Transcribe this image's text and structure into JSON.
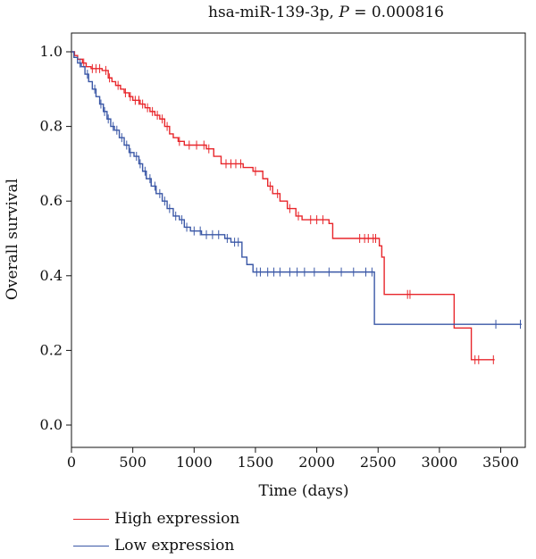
{
  "title": {
    "text": "hsa-miR-139-3p, ",
    "p_symbol": "P",
    "p_value": " = 0.000816"
  },
  "chart_data": {
    "type": "line",
    "step": true,
    "xlabel": "Time (days)",
    "ylabel": "Overall survival",
    "xlim": [
      0,
      3700
    ],
    "ylim": [
      0.0,
      1.0
    ],
    "x_ticks": [
      "0",
      "500",
      "1000",
      "1500",
      "2000",
      "2500",
      "3000",
      "3500"
    ],
    "y_ticks": [
      "0.0",
      "0.2",
      "0.4",
      "0.6",
      "0.8",
      "1.0"
    ],
    "legend_position": "bottom-left",
    "series": [
      {
        "name": "High expression",
        "color": "#e8262b",
        "points": [
          [
            0,
            1.0
          ],
          [
            25,
            0.99
          ],
          [
            50,
            0.98
          ],
          [
            90,
            0.97
          ],
          [
            120,
            0.96
          ],
          [
            160,
            0.955
          ],
          [
            250,
            0.95
          ],
          [
            300,
            0.93
          ],
          [
            330,
            0.92
          ],
          [
            360,
            0.91
          ],
          [
            400,
            0.9
          ],
          [
            430,
            0.89
          ],
          [
            470,
            0.88
          ],
          [
            500,
            0.87
          ],
          [
            560,
            0.86
          ],
          [
            600,
            0.85
          ],
          [
            640,
            0.84
          ],
          [
            680,
            0.83
          ],
          [
            720,
            0.82
          ],
          [
            760,
            0.8
          ],
          [
            800,
            0.78
          ],
          [
            830,
            0.77
          ],
          [
            870,
            0.76
          ],
          [
            920,
            0.75
          ],
          [
            1100,
            0.74
          ],
          [
            1160,
            0.72
          ],
          [
            1220,
            0.7
          ],
          [
            1400,
            0.69
          ],
          [
            1480,
            0.68
          ],
          [
            1560,
            0.66
          ],
          [
            1600,
            0.64
          ],
          [
            1640,
            0.62
          ],
          [
            1700,
            0.6
          ],
          [
            1760,
            0.58
          ],
          [
            1830,
            0.56
          ],
          [
            1880,
            0.55
          ],
          [
            2100,
            0.54
          ],
          [
            2130,
            0.5
          ],
          [
            2510,
            0.48
          ],
          [
            2530,
            0.45
          ],
          [
            2550,
            0.35
          ],
          [
            3120,
            0.26
          ],
          [
            3260,
            0.175
          ],
          [
            3450,
            0.175
          ]
        ],
        "censor_x": [
          100,
          170,
          200,
          230,
          280,
          310,
          380,
          440,
          480,
          520,
          550,
          580,
          620,
          660,
          700,
          740,
          780,
          880,
          960,
          1020,
          1080,
          1120,
          1260,
          1300,
          1340,
          1380,
          1500,
          1620,
          1680,
          1780,
          1850,
          1950,
          2000,
          2050,
          2350,
          2390,
          2420,
          2460,
          2480,
          2740,
          2760,
          3290,
          3320,
          3440
        ]
      },
      {
        "name": "Low expression",
        "color": "#3a57a6",
        "points": [
          [
            0,
            1.0
          ],
          [
            20,
            0.985
          ],
          [
            50,
            0.97
          ],
          [
            80,
            0.96
          ],
          [
            110,
            0.94
          ],
          [
            140,
            0.92
          ],
          [
            170,
            0.9
          ],
          [
            200,
            0.88
          ],
          [
            230,
            0.86
          ],
          [
            260,
            0.84
          ],
          [
            290,
            0.82
          ],
          [
            320,
            0.8
          ],
          [
            350,
            0.79
          ],
          [
            390,
            0.77
          ],
          [
            430,
            0.75
          ],
          [
            470,
            0.73
          ],
          [
            510,
            0.72
          ],
          [
            550,
            0.7
          ],
          [
            580,
            0.68
          ],
          [
            610,
            0.66
          ],
          [
            650,
            0.64
          ],
          [
            690,
            0.62
          ],
          [
            740,
            0.6
          ],
          [
            780,
            0.58
          ],
          [
            830,
            0.56
          ],
          [
            880,
            0.55
          ],
          [
            920,
            0.53
          ],
          [
            970,
            0.52
          ],
          [
            1060,
            0.51
          ],
          [
            1250,
            0.5
          ],
          [
            1300,
            0.49
          ],
          [
            1390,
            0.45
          ],
          [
            1430,
            0.43
          ],
          [
            1480,
            0.41
          ],
          [
            2470,
            0.27
          ],
          [
            3670,
            0.27
          ]
        ],
        "censor_x": [
          70,
          130,
          190,
          240,
          270,
          300,
          340,
          370,
          410,
          450,
          480,
          530,
          560,
          600,
          640,
          680,
          720,
          760,
          800,
          850,
          900,
          940,
          1000,
          1050,
          1100,
          1150,
          1200,
          1270,
          1330,
          1360,
          1510,
          1540,
          1600,
          1650,
          1700,
          1780,
          1840,
          1900,
          1980,
          2100,
          2200,
          2300,
          2400,
          2450,
          3460,
          3660
        ]
      }
    ]
  }
}
